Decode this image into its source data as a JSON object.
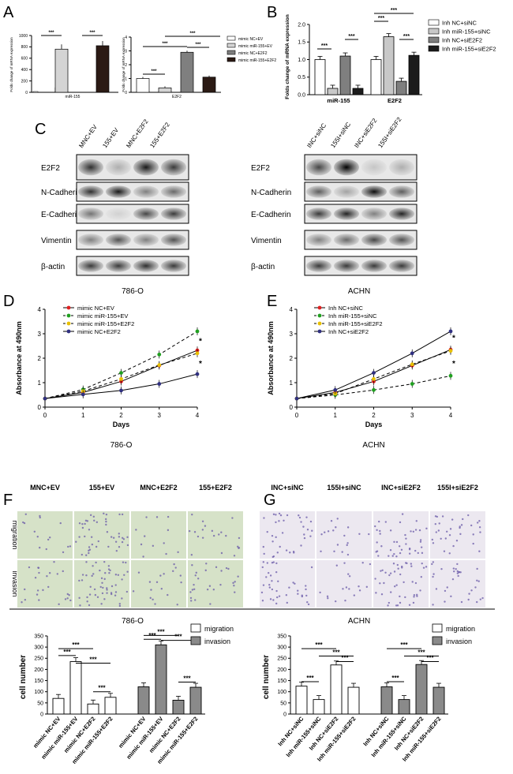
{
  "panel_letters": {
    "A": "A",
    "B": "B",
    "C": "C",
    "D": "D",
    "E": "E",
    "F": "F",
    "G": "G"
  },
  "cell_lines": {
    "left": "786-O",
    "right": "ACHN"
  },
  "days_label": "Days",
  "absorbance_label": "Absorbance at 490nm",
  "cell_number_label": "cell number",
  "fold_label_small": "Folds change of mRNA expression",
  "fold_label_b": "Folds change of mRNA expression",
  "sig": "***",
  "star": "*",
  "wb": {
    "left_lanes": [
      "MNC+EV",
      "155+EV",
      "MNC+E2F2",
      "155+E2F2"
    ],
    "right_lanes": [
      "INC+siNC",
      "155I+siNC",
      "INC+siE2F2",
      "155I+siE2F2"
    ],
    "proteins": [
      "E2F2",
      "N-Cadherin",
      "E-Cadherin",
      "Vimentin",
      "β-actin"
    ],
    "left_intensity": [
      [
        0.8,
        0.25,
        0.9,
        0.75
      ],
      [
        0.8,
        0.9,
        0.45,
        0.55
      ],
      [
        0.5,
        0.1,
        0.7,
        0.75
      ],
      [
        0.45,
        0.65,
        0.45,
        0.65
      ],
      [
        0.75,
        0.75,
        0.8,
        0.75
      ]
    ],
    "right_intensity": [
      [
        0.7,
        1.0,
        0.15,
        0.25
      ],
      [
        0.6,
        0.3,
        0.95,
        0.6
      ],
      [
        0.75,
        0.85,
        0.45,
        0.85
      ],
      [
        0.45,
        0.55,
        0.7,
        0.65
      ],
      [
        0.75,
        0.75,
        0.75,
        0.75
      ]
    ]
  },
  "transwell": {
    "left_cols": [
      "MNC+EV",
      "155+EV",
      "MNC+E2F2",
      "155+E2F2"
    ],
    "right_cols": [
      "INC+siNC",
      "155I+siNC",
      "INC+siE2F2",
      "155I+siE2F2"
    ],
    "rows": [
      "migration",
      "invasion"
    ],
    "left_density": [
      [
        0.25,
        0.75,
        0.2,
        0.35
      ],
      [
        0.4,
        0.9,
        0.3,
        0.45
      ]
    ],
    "right_density": [
      [
        0.6,
        0.3,
        0.7,
        0.55
      ],
      [
        0.65,
        0.3,
        0.75,
        0.55
      ]
    ]
  },
  "chart_data": [
    {
      "id": "A1",
      "type": "bar",
      "categories": [
        "miR-155"
      ],
      "series": [
        {
          "name": "mimic NC+EV",
          "values": [
            1
          ],
          "color": "#ffffff"
        },
        {
          "name": "mimic miR-155+EV",
          "values": [
            760
          ],
          "color": "#d4d4d4"
        },
        {
          "name": "mimic NC+E2F2",
          "values": [
            0
          ],
          "color": "#7f7f7f"
        },
        {
          "name": "mimic miR-155+E2F2",
          "values": [
            820
          ],
          "color": "#2b1a14"
        }
      ],
      "ylim": [
        0,
        1000
      ],
      "yticks": [
        0,
        200,
        400,
        600,
        800,
        1000
      ],
      "ylabel": "Folds change of mRNA expression"
    },
    {
      "id": "A2",
      "type": "bar",
      "categories": [
        "E2F2"
      ],
      "series": [
        {
          "name": "mimic NC+EV",
          "values": [
            1.0
          ]
        },
        {
          "name": "mimic miR-155+EV",
          "values": [
            0.32
          ]
        },
        {
          "name": "mimic NC+E2F2",
          "values": [
            2.9
          ]
        },
        {
          "name": "mimic miR-155+E2F2",
          "values": [
            1.1
          ]
        }
      ],
      "ylim": [
        0,
        4
      ],
      "yticks": [
        0,
        1,
        2,
        3,
        4
      ],
      "ylabel": "Folds change of mRNA expression",
      "legend": [
        "mimic NC+EV",
        "mimic miR-155+EV",
        "mimic NC+E2F2",
        "mimic miR-155+E2F2"
      ]
    },
    {
      "id": "B",
      "type": "bar",
      "categories": [
        "miR-155",
        "E2F2"
      ],
      "series": [
        {
          "name": "Inh NC+siNC",
          "values": [
            1.0,
            1.0
          ]
        },
        {
          "name": "Inh miR-155+siNC",
          "values": [
            0.18,
            1.65
          ]
        },
        {
          "name": "Inh NC+siE2F2",
          "values": [
            1.1,
            0.38
          ]
        },
        {
          "name": "Inh miR-155+siE2F2",
          "values": [
            0.18,
            1.12
          ]
        }
      ],
      "ylim": [
        0,
        2.0
      ],
      "yticks": [
        0,
        0.5,
        1.0,
        1.5,
        2.0
      ],
      "ylabel": "Folds change of mRNA expression"
    },
    {
      "id": "D",
      "type": "line",
      "x": [
        0,
        1,
        2,
        3,
        4
      ],
      "xlabel": "Days",
      "ylabel": "Absorbance at 490nm",
      "ylim": [
        0,
        4
      ],
      "series": [
        {
          "name": "mimic NC+EV",
          "values": [
            0.35,
            0.6,
            1.05,
            1.7,
            2.32
          ],
          "color": "#e02020",
          "dash": false
        },
        {
          "name": "mimic miR-155+EV",
          "values": [
            0.35,
            0.72,
            1.4,
            2.15,
            3.1
          ],
          "color": "#20a020",
          "dash": true
        },
        {
          "name": "mimic miR-155+E2F2",
          "values": [
            0.35,
            0.65,
            1.15,
            1.72,
            2.2
          ],
          "color": "#e8c000",
          "dash": true
        },
        {
          "name": "mimic NC+E2F2",
          "values": [
            0.35,
            0.52,
            0.68,
            0.95,
            1.35
          ],
          "color": "#303080",
          "dash": false
        }
      ]
    },
    {
      "id": "E",
      "type": "line",
      "x": [
        0,
        1,
        2,
        3,
        4
      ],
      "xlabel": "Days",
      "ylabel": "Absorbance at 490nm",
      "ylim": [
        0,
        4
      ],
      "series": [
        {
          "name": "Inh NC+siNC",
          "values": [
            0.35,
            0.6,
            1.05,
            1.7,
            2.35
          ],
          "color": "#e02020",
          "dash": false
        },
        {
          "name": "Inh miR-155+siNC",
          "values": [
            0.35,
            0.5,
            0.7,
            0.95,
            1.28
          ],
          "color": "#20a020",
          "dash": true
        },
        {
          "name": "Inh miR-155+siE2F2",
          "values": [
            0.35,
            0.55,
            1.15,
            1.75,
            2.3
          ],
          "color": "#e8c000",
          "dash": true
        },
        {
          "name": "Inh NC+siE2F2",
          "values": [
            0.35,
            0.7,
            1.4,
            2.2,
            3.1
          ],
          "color": "#303080",
          "dash": false
        }
      ]
    },
    {
      "id": "F",
      "type": "bar",
      "categories": [
        "mimic NC+EV",
        "mimic miR-155+EV",
        "mimic NC+E2F2",
        "mimic miR-155+E2F2",
        "mimic NC+EV",
        "mimic miR-155+EV",
        "mimic NC+E2F2",
        "mimic miR-155+E2F2"
      ],
      "series": [
        {
          "name": "migration",
          "values": [
            70,
            235,
            45,
            75,
            null,
            null,
            null,
            null
          ],
          "color": "#ffffff"
        },
        {
          "name": "invasion",
          "values": [
            null,
            null,
            null,
            null,
            122,
            310,
            62,
            120
          ],
          "color": "#8a8a8a"
        }
      ],
      "ylim": [
        0,
        350
      ],
      "yticks": [
        0,
        50,
        100,
        150,
        200,
        250,
        300,
        350
      ],
      "ylabel": "cell number"
    },
    {
      "id": "G",
      "type": "bar",
      "categories": [
        "Inh NC+siNC",
        "Inh miR-155+siNC",
        "Inh NC+siE2F2",
        "Inh miR-155+siE2F2",
        "Inh NC+siNC",
        "Inh miR-155+siNC",
        "Inh NC+siE2F2",
        "Inh miR-155+siE2F2"
      ],
      "series": [
        {
          "name": "migration",
          "values": [
            125,
            65,
            220,
            120,
            null,
            null,
            null,
            null
          ],
          "color": "#ffffff"
        },
        {
          "name": "invasion",
          "values": [
            null,
            null,
            null,
            null,
            122,
            65,
            222,
            120
          ],
          "color": "#8a8a8a"
        }
      ],
      "ylim": [
        0,
        350
      ],
      "yticks": [
        0,
        50,
        100,
        150,
        200,
        250,
        300,
        350
      ],
      "ylabel": "cell number"
    }
  ]
}
